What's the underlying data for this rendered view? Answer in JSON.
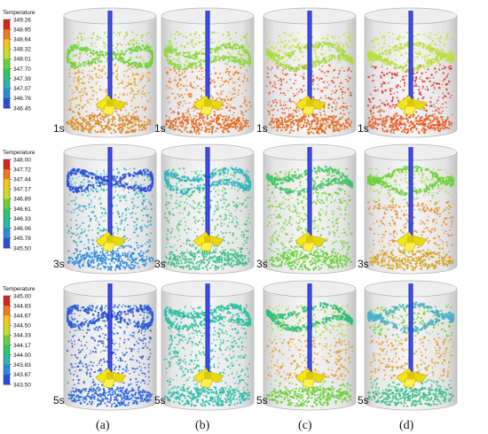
{
  "colorbars": [
    {
      "title": "Temperature",
      "ticks": [
        "349.26",
        "348.95",
        "348.64",
        "348.32",
        "348.01",
        "347.70",
        "347.39",
        "347.07",
        "346.76",
        "346.45"
      ],
      "colors": [
        "#d62418",
        "#ee7a1e",
        "#f2c41e",
        "#c8dc2a",
        "#6acf3a",
        "#2fc36a",
        "#27b8a8",
        "#2a8ad8",
        "#2a4fd6"
      ]
    },
    {
      "title": "Temperature",
      "ticks": [
        "348.00",
        "347.72",
        "347.44",
        "347.17",
        "346.89",
        "346.61",
        "346.33",
        "346.06",
        "345.78",
        "345.50"
      ],
      "colors": [
        "#d62418",
        "#ee7a1e",
        "#f2c41e",
        "#c8dc2a",
        "#6acf3a",
        "#2fc36a",
        "#27b8a8",
        "#2a8ad8",
        "#2a4fd6"
      ]
    },
    {
      "title": "Temperature",
      "ticks": [
        "345.00",
        "344.83",
        "344.67",
        "344.50",
        "344.33",
        "344.17",
        "344.00",
        "343.83",
        "343.67",
        "343.50"
      ],
      "colors": [
        "#d62418",
        "#ee7a1e",
        "#f2c41e",
        "#c8dc2a",
        "#6acf3a",
        "#2fc36a",
        "#27b8a8",
        "#2a8ad8",
        "#2a4fd6"
      ]
    }
  ],
  "rows": [
    {
      "time": "1s",
      "panels": [
        {
          "ring": "#74d23a",
          "upper": "#9fd844",
          "lower": "#e9a126",
          "bottom": "#d98a24"
        },
        {
          "ring": "#8fd63e",
          "upper": "#a6da46",
          "lower": "#ec7e24",
          "bottom": "#e26a22"
        },
        {
          "ring": "#a8dc44",
          "upper": "#cadd3a",
          "lower": "#e5552a",
          "bottom": "#e26a22"
        },
        {
          "ring": "#b9de40",
          "upper": "#cadd3a",
          "lower": "#e0302a",
          "bottom": "#e55a26"
        }
      ]
    },
    {
      "time": "3s",
      "panels": [
        {
          "ring": "#2f4fd6",
          "upper": "#3fb8c8",
          "lower": "#2fa6c8",
          "bottom": "#2f8ad8"
        },
        {
          "ring": "#30b4c0",
          "upper": "#5cc98a",
          "lower": "#4ec47a",
          "bottom": "#3fbf86"
        },
        {
          "ring": "#44c46a",
          "upper": "#6acf3a",
          "lower": "#7ad640",
          "bottom": "#6acf3a"
        },
        {
          "ring": "#6ecf3c",
          "upper": "#a6da46",
          "lower": "#e58a26",
          "bottom": "#d6a226"
        }
      ]
    },
    {
      "time": "5s",
      "panels": [
        {
          "ring": "#2a5ad6",
          "upper": "#2a66d8",
          "lower": "#2a5ad6",
          "bottom": "#2a66d8"
        },
        {
          "ring": "#2cc0a2",
          "upper": "#2cc0a2",
          "lower": "#30c0a0",
          "bottom": "#2cbca6"
        },
        {
          "ring": "#2fbf7a",
          "upper": "#a8dc44",
          "lower": "#e0a030",
          "bottom": "#6ecf3c"
        },
        {
          "ring": "#4ab0c8",
          "upper": "#6ecf3c",
          "lower": "#e0a030",
          "bottom": "#3fbf86"
        }
      ]
    }
  ],
  "column_labels": [
    "(a)",
    "(b)",
    "(c)",
    "(d)"
  ]
}
